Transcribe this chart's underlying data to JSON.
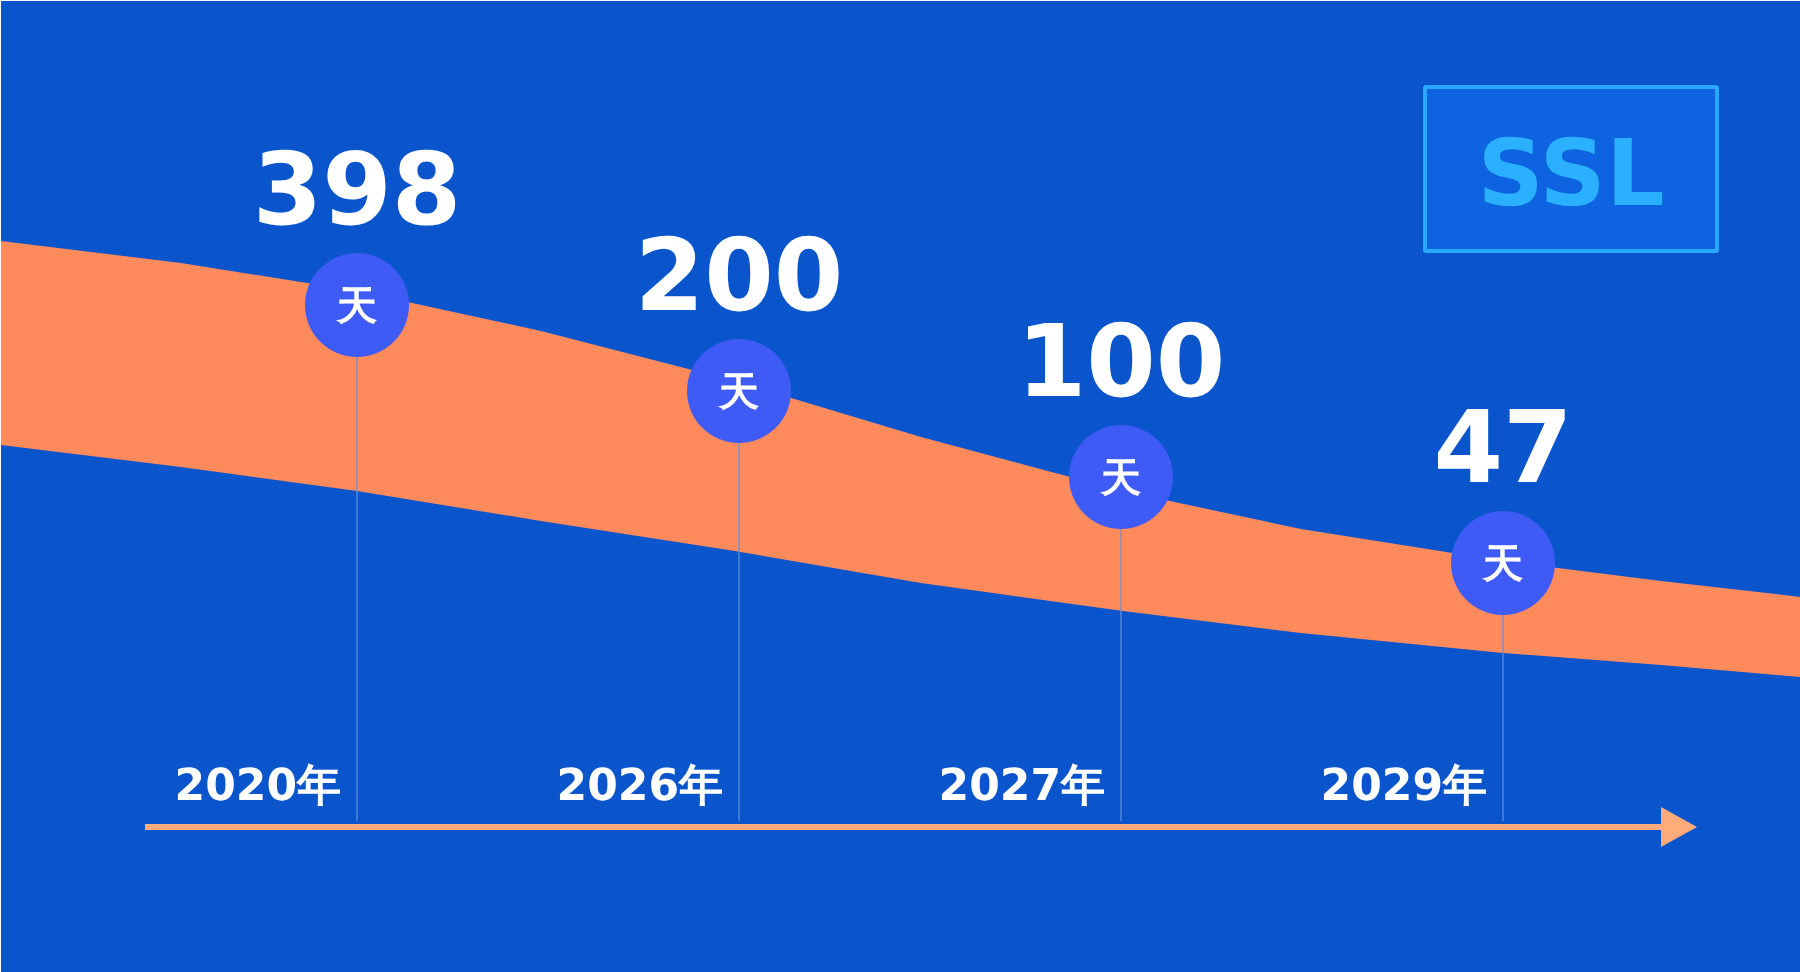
{
  "chart_data": {
    "type": "other",
    "categories": [
      "2020年",
      "2026年",
      "2027年",
      "2029年"
    ],
    "values": [
      398,
      200,
      100,
      47
    ],
    "data_labels": true,
    "annotations": [
      {
        "text": "天",
        "x": "2020年"
      },
      {
        "text": "天",
        "x": "2026年"
      },
      {
        "text": "天",
        "x": "2027年"
      },
      {
        "text": "天",
        "x": "2029年"
      },
      "SSL"
    ]
  }
}
